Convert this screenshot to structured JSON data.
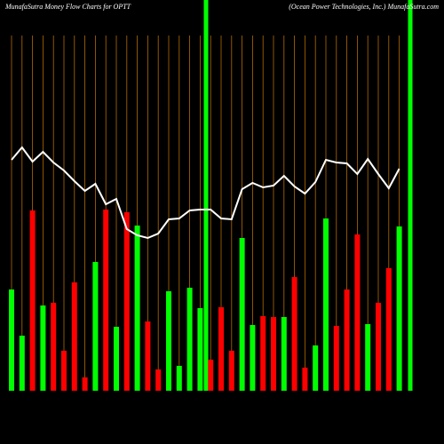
{
  "chart_data": {
    "type": "bar",
    "title": "MunafaSutra  Money Flow  Charts for OPTT",
    "subtitle": "(Ocean  Power Technologies,  Inc.) MunafaSutra.com",
    "ylim": [
      0,
      300
    ],
    "series": [
      {
        "name": "Money flow",
        "type": "bar",
        "colors": [
          "#00ff00",
          "#00ff00",
          "#ff0000",
          "#00ff00",
          "#ff0000",
          "#ff0000",
          "#ff0000",
          "#ff0000",
          "#00ff00",
          "#ff0000",
          "#00ff00",
          "#ff0000",
          "#00ff00",
          "#ff0000",
          "#ff0000",
          "#00ff00",
          "#00ff00",
          "#00ff00",
          "#00ff00",
          "#ff0000",
          "#ff0000",
          "#ff0000",
          "#00ff00",
          "#00ff00",
          "#ff0000",
          "#ff0000",
          "#00ff00",
          "#ff0000",
          "#ff0000",
          "#00ff00",
          "#00ff00",
          "#ff0000",
          "#ff0000",
          "#ff0000",
          "#00ff00",
          "#ff0000",
          "#ff0000",
          "#00ff00"
        ],
        "values": [
          114,
          62,
          203,
          96,
          99,
          45,
          122,
          15,
          145,
          204,
          72,
          201,
          186,
          78,
          24,
          112,
          28,
          116,
          93,
          35,
          94,
          45,
          172,
          74,
          84,
          83,
          83,
          128,
          26,
          51,
          194,
          73,
          114,
          176,
          75,
          99,
          138,
          185
        ]
      },
      {
        "name": "Price",
        "type": "line",
        "color": "#ffffff",
        "values": [
          260,
          274,
          258,
          269,
          257,
          248,
          236,
          225,
          233,
          210,
          216,
          182,
          175,
          172,
          177,
          193,
          194,
          203,
          204,
          204,
          194,
          193,
          227,
          234,
          229,
          231,
          242,
          230,
          222,
          235,
          260,
          257,
          256,
          244,
          261,
          244,
          228,
          250
        ]
      }
    ]
  }
}
